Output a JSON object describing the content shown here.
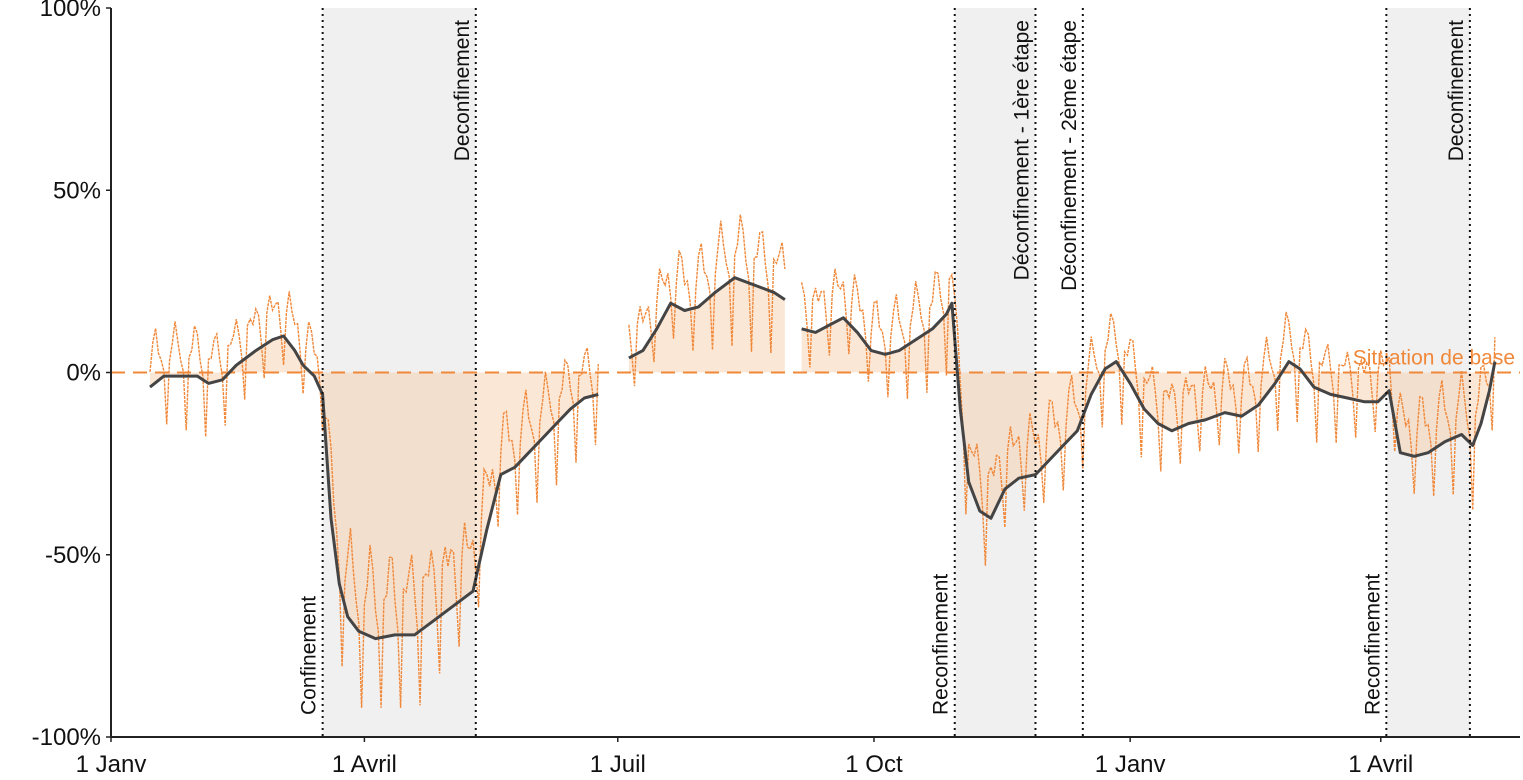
{
  "chart_data": {
    "type": "line",
    "title": "",
    "xlabel": "",
    "ylabel": "",
    "x_range": [
      "2020-01-01",
      "2021-05-21"
    ],
    "ylim": [
      -100,
      100
    ],
    "x_ticks": [
      {
        "date": "2020-01-01",
        "label": "1 Janv"
      },
      {
        "date": "2020-04-01",
        "label": "1 Avril"
      },
      {
        "date": "2020-07-01",
        "label": "1 Juil"
      },
      {
        "date": "2020-10-01",
        "label": "1 Oct"
      },
      {
        "date": "2021-01-01",
        "label": "1 Janv"
      },
      {
        "date": "2021-04-01",
        "label": "1 Avril"
      }
    ],
    "y_ticks": [
      {
        "value": 100,
        "label": "100%"
      },
      {
        "value": 50,
        "label": "50%"
      },
      {
        "value": 0,
        "label": "0%"
      },
      {
        "value": -50,
        "label": "-50%"
      },
      {
        "value": -100,
        "label": "-100%"
      }
    ],
    "baseline": {
      "value": 0,
      "label": "Situation de base",
      "color": "#f0883a"
    },
    "shaded_periods": [
      {
        "start": "2020-03-17",
        "end": "2020-05-11"
      },
      {
        "start": "2020-10-30",
        "end": "2020-11-28"
      },
      {
        "start": "2021-04-03",
        "end": "2021-05-03"
      }
    ],
    "events": [
      {
        "date": "2020-03-17",
        "label": "Confinement",
        "position": "bottom"
      },
      {
        "date": "2020-05-11",
        "label": "Deconfinement",
        "position": "top"
      },
      {
        "date": "2020-10-30",
        "label": "Reconfinement",
        "position": "bottom"
      },
      {
        "date": "2020-11-28",
        "label": "Déconfinement - 1ère étape",
        "position": "top"
      },
      {
        "date": "2020-12-15",
        "label": "Déconfinement - 2ème étape",
        "position": "top"
      },
      {
        "date": "2021-04-03",
        "label": "Reconfinement",
        "position": "bottom"
      },
      {
        "date": "2021-05-03",
        "label": "Deconfinement",
        "position": "top"
      }
    ],
    "series": [
      {
        "style": "weekly-average",
        "color": "#444444",
        "points": [
          [
            "2020-01-15",
            -4
          ],
          [
            "2020-01-20",
            -1
          ],
          [
            "2020-01-25",
            -1
          ],
          [
            "2020-02-01",
            -1
          ],
          [
            "2020-02-05",
            -3
          ],
          [
            "2020-02-10",
            -2
          ],
          [
            "2020-02-15",
            2
          ],
          [
            "2020-02-22",
            6
          ],
          [
            "2020-02-28",
            9
          ],
          [
            "2020-03-03",
            10
          ],
          [
            "2020-03-07",
            6
          ],
          [
            "2020-03-10",
            2
          ],
          [
            "2020-03-14",
            -1
          ],
          [
            "2020-03-17",
            -6
          ],
          [
            "2020-03-20",
            -40
          ],
          [
            "2020-03-23",
            -58
          ],
          [
            "2020-03-26",
            -67
          ],
          [
            "2020-03-30",
            -71
          ],
          [
            "2020-04-05",
            -73
          ],
          [
            "2020-04-12",
            -72
          ],
          [
            "2020-04-19",
            -72
          ],
          [
            "2020-04-26",
            -68
          ],
          [
            "2020-05-03",
            -64
          ],
          [
            "2020-05-10",
            -60
          ],
          [
            "2020-05-15",
            -43
          ],
          [
            "2020-05-20",
            -28
          ],
          [
            "2020-05-25",
            -26
          ],
          [
            "2020-05-30",
            -22
          ],
          [
            "2020-06-04",
            -18
          ],
          [
            "2020-06-09",
            -14
          ],
          [
            "2020-06-14",
            -10
          ],
          [
            "2020-06-19",
            -7
          ],
          [
            "2020-06-24",
            -6
          ],
          null,
          [
            "2020-07-05",
            4
          ],
          [
            "2020-07-10",
            6
          ],
          [
            "2020-07-15",
            12
          ],
          [
            "2020-07-20",
            19
          ],
          [
            "2020-07-25",
            17
          ],
          [
            "2020-07-30",
            18
          ],
          [
            "2020-08-05",
            22
          ],
          [
            "2020-08-12",
            26
          ],
          [
            "2020-08-19",
            24
          ],
          [
            "2020-08-26",
            22
          ],
          [
            "2020-08-30",
            20
          ],
          null,
          [
            "2020-09-05",
            12
          ],
          [
            "2020-09-10",
            11
          ],
          [
            "2020-09-15",
            13
          ],
          [
            "2020-09-20",
            15
          ],
          [
            "2020-09-25",
            11
          ],
          [
            "2020-09-30",
            6
          ],
          [
            "2020-10-05",
            5
          ],
          [
            "2020-10-10",
            6
          ],
          [
            "2020-10-16",
            9
          ],
          [
            "2020-10-22",
            12
          ],
          [
            "2020-10-27",
            16
          ],
          [
            "2020-10-29",
            19
          ],
          [
            "2020-11-01",
            -10
          ],
          [
            "2020-11-04",
            -30
          ],
          [
            "2020-11-08",
            -38
          ],
          [
            "2020-11-12",
            -40
          ],
          [
            "2020-11-17",
            -32
          ],
          [
            "2020-11-22",
            -29
          ],
          [
            "2020-11-28",
            -28
          ],
          [
            "2020-12-03",
            -24
          ],
          [
            "2020-12-08",
            -20
          ],
          [
            "2020-12-13",
            -16
          ],
          [
            "2020-12-18",
            -6
          ],
          [
            "2020-12-23",
            1
          ],
          [
            "2020-12-27",
            3
          ],
          [
            "2021-01-01",
            -3
          ],
          [
            "2021-01-06",
            -10
          ],
          [
            "2021-01-11",
            -14
          ],
          [
            "2021-01-16",
            -16
          ],
          [
            "2021-01-22",
            -14
          ],
          [
            "2021-01-28",
            -13
          ],
          [
            "2021-02-04",
            -11
          ],
          [
            "2021-02-10",
            -12
          ],
          [
            "2021-02-16",
            -9
          ],
          [
            "2021-02-22",
            -3
          ],
          [
            "2021-02-27",
            3
          ],
          [
            "2021-03-03",
            1
          ],
          [
            "2021-03-08",
            -4
          ],
          [
            "2021-03-14",
            -6
          ],
          [
            "2021-03-20",
            -7
          ],
          [
            "2021-03-26",
            -8
          ],
          [
            "2021-03-31",
            -8
          ],
          [
            "2021-04-04",
            -5
          ],
          [
            "2021-04-08",
            -22
          ],
          [
            "2021-04-13",
            -23
          ],
          [
            "2021-04-18",
            -22
          ],
          [
            "2021-04-24",
            -19
          ],
          [
            "2021-04-30",
            -17
          ],
          [
            "2021-05-04",
            -20
          ],
          [
            "2021-05-07",
            -14
          ],
          [
            "2021-05-10",
            -5
          ],
          [
            "2021-05-12",
            3
          ]
        ]
      }
    ],
    "daily_values": {
      "style": "daily",
      "color": "#f0883a",
      "note_shading": "area between daily/weekly average and baseline is shaded orange"
    }
  }
}
